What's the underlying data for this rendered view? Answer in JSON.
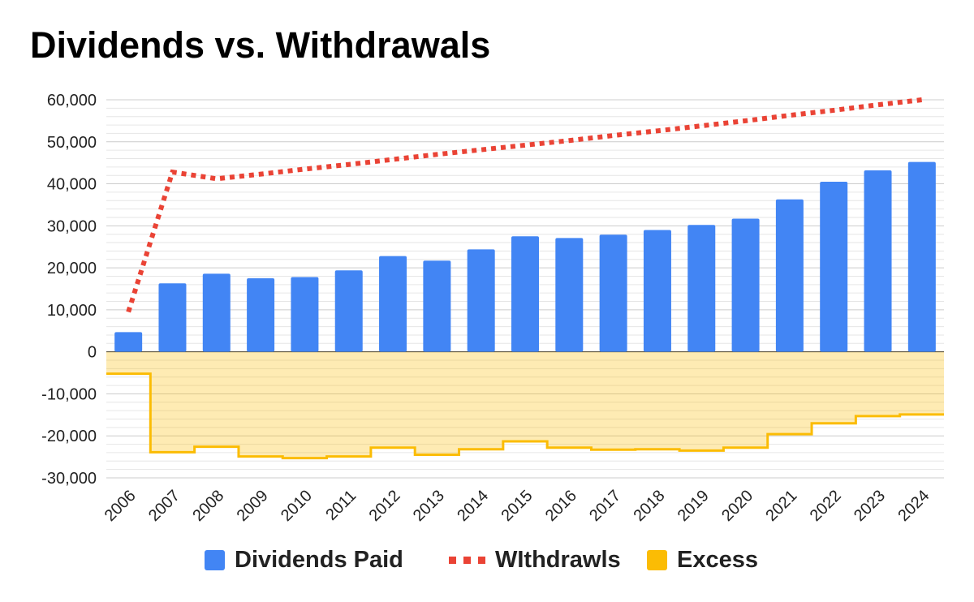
{
  "chart_data": {
    "type": "bar",
    "title": "Dividends vs. Withdrawals",
    "categories": [
      "2006",
      "2007",
      "2008",
      "2009",
      "2010",
      "2011",
      "2012",
      "2013",
      "2014",
      "2015",
      "2016",
      "2017",
      "2018",
      "2019",
      "2020",
      "2021",
      "2022",
      "2023",
      "2024"
    ],
    "series": [
      {
        "name": "Dividends Paid",
        "type": "bar",
        "color": "#4285f4",
        "values": [
          4700,
          16300,
          18600,
          17500,
          17800,
          19400,
          22800,
          21700,
          24400,
          27500,
          27100,
          27900,
          29000,
          30200,
          31700,
          36300,
          40500,
          43200,
          45200
        ]
      },
      {
        "name": "WIthdrawls",
        "type": "line",
        "style": "dotted",
        "color": "#ea4335",
        "values": [
          9500,
          42800,
          41200,
          42300,
          43500,
          44600,
          45800,
          47000,
          48100,
          49200,
          50300,
          51500,
          52600,
          53800,
          55000,
          56300,
          57500,
          58800,
          60000
        ]
      },
      {
        "name": "Excess",
        "type": "stepped-area",
        "color": "#fbbc04",
        "values": [
          -5200,
          -23900,
          -22600,
          -24900,
          -25300,
          -24900,
          -22800,
          -24500,
          -23200,
          -21300,
          -22800,
          -23300,
          -23200,
          -23500,
          -22800,
          -19600,
          -17000,
          -15300,
          -14900
        ]
      }
    ],
    "y_ticks": [
      "60,000",
      "50,000",
      "40,000",
      "30,000",
      "20,000",
      "10,000",
      "0",
      "-10,000",
      "-20,000",
      "-30,000"
    ],
    "ylim": [
      -30000,
      60000
    ],
    "grid": true,
    "legend_position": "bottom",
    "xlabel": "",
    "ylabel": ""
  }
}
